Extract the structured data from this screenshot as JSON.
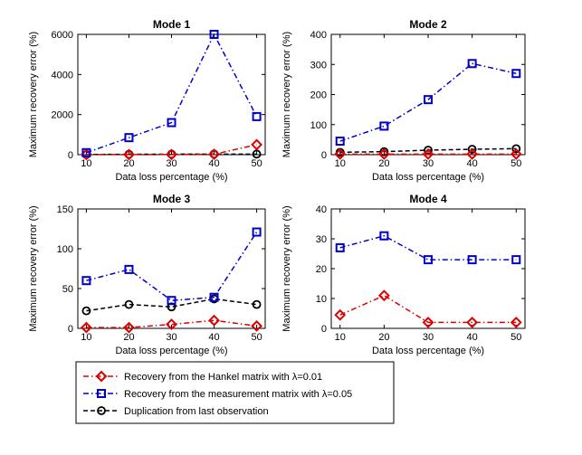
{
  "chart_data": [
    {
      "type": "line",
      "title": "Mode 1",
      "xlabel": "Data loss percentage (%)",
      "ylabel": "Maximum recovery error (%)",
      "x": [
        10,
        20,
        30,
        40,
        50
      ],
      "xlim": [
        8,
        52
      ],
      "ylim": [
        0,
        6000
      ],
      "yticks": [
        0,
        2000,
        4000,
        6000
      ],
      "series": [
        {
          "name": "Recovery from the Hankel matrix with λ=0.01",
          "values": [
            5,
            5,
            10,
            20,
            500
          ]
        },
        {
          "name": "Recovery from the measurement matrix with λ=0.05",
          "values": [
            100,
            850,
            1600,
            6000,
            1900
          ]
        },
        {
          "name": "Duplication from last observation",
          "values": [
            10,
            20,
            25,
            30,
            30
          ]
        }
      ]
    },
    {
      "type": "line",
      "title": "Mode 2",
      "xlabel": "Data loss percentage (%)",
      "ylabel": "Maximum recovery error (%)",
      "x": [
        10,
        20,
        30,
        40,
        50
      ],
      "xlim": [
        8,
        52
      ],
      "ylim": [
        0,
        400
      ],
      "yticks": [
        0,
        100,
        200,
        300,
        400
      ],
      "series": [
        {
          "name": "Recovery from the Hankel matrix with λ=0.01",
          "values": [
            2,
            2,
            2,
            2,
            2
          ]
        },
        {
          "name": "Recovery from the measurement matrix with λ=0.05",
          "values": [
            45,
            95,
            183,
            303,
            270
          ]
        },
        {
          "name": "Duplication from last observation",
          "values": [
            8,
            10,
            15,
            18,
            20
          ]
        }
      ]
    },
    {
      "type": "line",
      "title": "Mode 3",
      "xlabel": "Data loss percentage (%)",
      "ylabel": "Maximum recovery error (%)",
      "x": [
        10,
        20,
        30,
        40,
        50
      ],
      "xlim": [
        8,
        52
      ],
      "ylim": [
        0,
        150
      ],
      "yticks": [
        0,
        50,
        100,
        150
      ],
      "series": [
        {
          "name": "Recovery from the Hankel matrix with λ=0.01",
          "values": [
            1,
            1,
            5,
            10,
            3
          ]
        },
        {
          "name": "Recovery from the measurement matrix with λ=0.05",
          "values": [
            60,
            74,
            35,
            39,
            121
          ]
        },
        {
          "name": "Duplication from last observation",
          "values": [
            22,
            30,
            27,
            37,
            30
          ]
        }
      ]
    },
    {
      "type": "line",
      "title": "Mode 4",
      "xlabel": "Data loss percentage (%)",
      "ylabel": "Maximum recovery error (%)",
      "x": [
        10,
        20,
        30,
        40,
        50
      ],
      "xlim": [
        8,
        52
      ],
      "ylim": [
        0,
        40
      ],
      "yticks": [
        0,
        10,
        20,
        30,
        40
      ],
      "series": [
        {
          "name": "Recovery from the Hankel matrix with λ=0.01",
          "values": [
            4.5,
            11,
            2,
            2,
            2
          ]
        },
        {
          "name": "Recovery from the measurement matrix with λ=0.05",
          "values": [
            27,
            31,
            23,
            23,
            23
          ]
        },
        {
          "name": "Duplication from last observation",
          "values": [
            null,
            null,
            null,
            null,
            null
          ]
        }
      ]
    }
  ],
  "legend": {
    "placement": "bottom-left",
    "items": [
      {
        "label": "Recovery from the Hankel matrix with λ=0.01",
        "color": "#dd0000",
        "marker": "diamond",
        "dash": "dash-dot"
      },
      {
        "label": "Recovery from the measurement matrix with λ=0.05",
        "color": "#0000cc",
        "marker": "square",
        "dash": "dash-dot"
      },
      {
        "label": "Duplication from last observation",
        "color": "#000000",
        "marker": "circle",
        "dash": "dashed"
      }
    ]
  }
}
